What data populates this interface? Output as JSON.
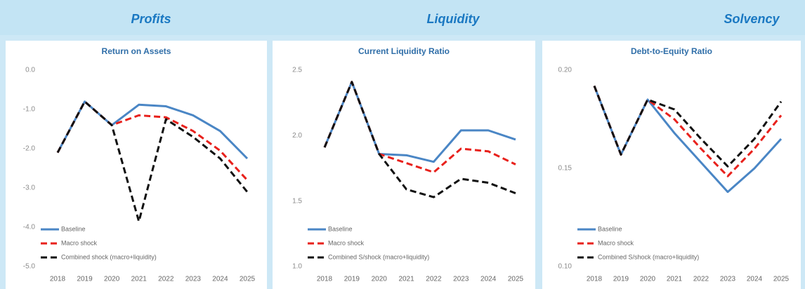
{
  "headings": [
    "Profits",
    "Liquidity",
    "Solvency"
  ],
  "chart_data": [
    {
      "type": "line",
      "title": "Return on Assets",
      "categories": [
        "2018",
        "2019",
        "2020",
        "2021",
        "2022",
        "2023",
        "2024",
        "2025"
      ],
      "ylim": [
        -5,
        0
      ],
      "yticks": [
        {
          "value": 0,
          "label": "0.0"
        },
        {
          "value": -1,
          "label": "-1.0"
        },
        {
          "value": -2,
          "label": "-2.0"
        },
        {
          "value": -3,
          "label": "-3.0"
        },
        {
          "value": -4,
          "label": "-4.0"
        },
        {
          "value": -5,
          "label": "-5.0"
        }
      ],
      "series": [
        {
          "name": "Baseline",
          "color": "#4a86c5",
          "dash": "solid",
          "values": [
            -2.1,
            -0.8,
            -1.4,
            -0.88,
            -0.92,
            -1.15,
            -1.55,
            -2.25
          ]
        },
        {
          "name": "Macro shock",
          "color": "#e8211c",
          "dash": "dashed",
          "values": [
            -2.1,
            -0.8,
            -1.4,
            -1.15,
            -1.2,
            -1.55,
            -2.05,
            -2.8
          ]
        },
        {
          "name": "Combined shock (macro+liquidity)",
          "color": "#111111",
          "dash": "dashed",
          "values": [
            -2.1,
            -0.8,
            -1.4,
            -3.85,
            -1.25,
            -1.7,
            -2.25,
            -3.1
          ]
        }
      ]
    },
    {
      "type": "line",
      "title": "Current Liquidity Ratio",
      "categories": [
        "2018",
        "2019",
        "2020",
        "2021",
        "2022",
        "2023",
        "2024",
        "2025"
      ],
      "ylim": [
        1.0,
        2.5
      ],
      "yticks": [
        {
          "value": 1.0,
          "label": "1.0"
        },
        1.5,
        {
          "value": 2.0,
          "label": "2.0"
        },
        2.5
      ],
      "series": [
        {
          "name": "Baseline",
          "color": "#4a86c5",
          "dash": "solid",
          "values": [
            1.91,
            2.41,
            1.86,
            1.85,
            1.8,
            2.04,
            2.04,
            1.97
          ]
        },
        {
          "name": "Macro shock",
          "color": "#e8211c",
          "dash": "dashed",
          "values": [
            1.91,
            2.41,
            1.86,
            1.79,
            1.72,
            1.9,
            1.88,
            1.78
          ]
        },
        {
          "name": "Combined S/shock (macro+liquidity)",
          "color": "#111111",
          "dash": "dashed",
          "values": [
            1.91,
            2.41,
            1.86,
            1.59,
            1.53,
            1.67,
            1.64,
            1.56
          ]
        }
      ]
    },
    {
      "type": "line",
      "title": "Debt-to-Equity Ratio",
      "categories": [
        "2018",
        "2019",
        "2020",
        "2021",
        "2022",
        "2023",
        "2024",
        "2025"
      ],
      "ylim": [
        0.1,
        0.2
      ],
      "yticks": [
        {
          "value": 0.1,
          "label": "0.10"
        },
        0.15,
        {
          "value": 0.2,
          "label": "0.20"
        }
      ],
      "series": [
        {
          "name": "Baseline",
          "color": "#4a86c5",
          "dash": "solid",
          "values": [
            0.192,
            0.157,
            0.185,
            0.168,
            0.153,
            0.138,
            0.15,
            0.165
          ]
        },
        {
          "name": "Macro shock",
          "color": "#e8211c",
          "dash": "dashed",
          "values": [
            0.192,
            0.157,
            0.185,
            0.175,
            0.16,
            0.146,
            0.16,
            0.177
          ]
        },
        {
          "name": "Combined S/shock (macro+liquidity)",
          "color": "#111111",
          "dash": "dashed",
          "values": [
            0.192,
            0.157,
            0.185,
            0.18,
            0.165,
            0.151,
            0.165,
            0.184
          ]
        }
      ]
    }
  ]
}
